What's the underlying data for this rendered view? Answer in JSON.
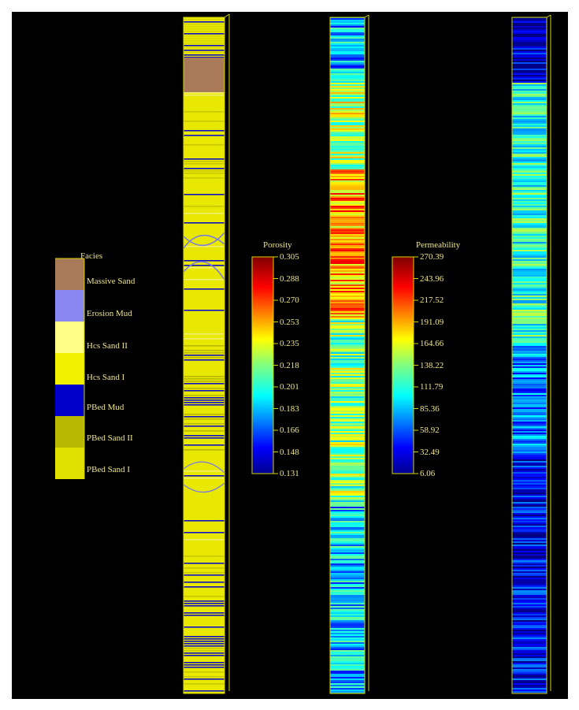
{
  "facies_legend": {
    "title": "Facies",
    "items": [
      {
        "label": "Massive Sand",
        "color": "#a87a5a"
      },
      {
        "label": "Erosion Mud",
        "color": "#8888f0"
      },
      {
        "label": "Hcs Sand II",
        "color": "#ffff88"
      },
      {
        "label": "Hcs Sand I",
        "color": "#f2f200"
      },
      {
        "label": "PBed Mud",
        "color": "#0000c8"
      },
      {
        "label": "PBed Sand II",
        "color": "#b8b800"
      },
      {
        "label": "PBed Sand I",
        "color": "#e0e000"
      }
    ]
  },
  "porosity_colorbar": {
    "title": "Porosity",
    "ticks": [
      "0.305",
      "0.288",
      "0.270",
      "0.253",
      "0.235",
      "0.218",
      "0.201",
      "0.183",
      "0.166",
      "0.148",
      "0.131"
    ]
  },
  "permeability_colorbar": {
    "title": "Permeability",
    "ticks": [
      "270.39",
      "243.96",
      "217.52",
      "191.09",
      "164.66",
      "138.22",
      "111.79",
      "85.36",
      "58.92",
      "32.49",
      "6.06"
    ]
  },
  "colors": {
    "background": "#000000",
    "text": "#f0e68c",
    "outline": "#d4d400"
  }
}
